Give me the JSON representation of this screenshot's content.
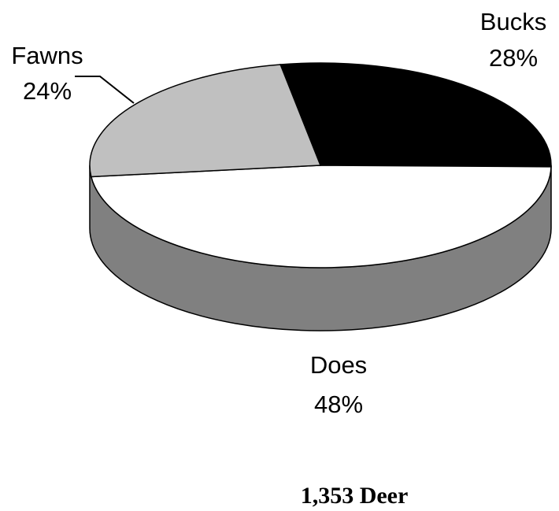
{
  "chart_data": {
    "type": "pie",
    "categories": [
      "Bucks",
      "Does",
      "Fawns"
    ],
    "values": [
      28,
      48,
      24
    ],
    "value_labels": [
      "28%",
      "48%",
      "24%"
    ],
    "colors": [
      "#000000",
      "#ffffff",
      "#c0c0c0"
    ],
    "caption": "1,353 Deer"
  }
}
